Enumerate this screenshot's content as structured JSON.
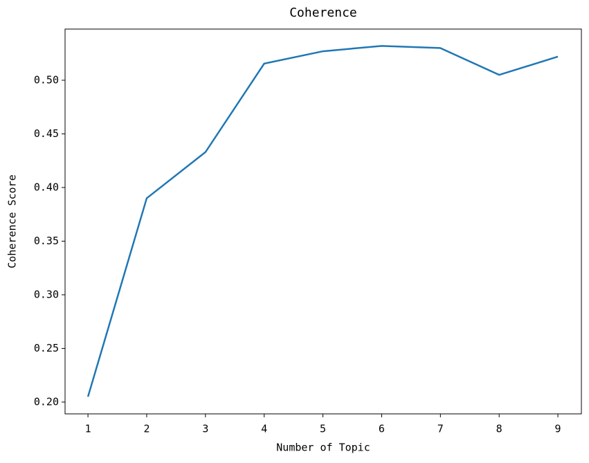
{
  "chart_data": {
    "type": "line",
    "title": "Coherence",
    "x_label": "Number of Topic",
    "y_label": "Coherence Score",
    "x": [
      1,
      2,
      3,
      4,
      5,
      6,
      7,
      8,
      9
    ],
    "series": [
      {
        "name": "Coherence Score",
        "color": "#1f77b4",
        "values": [
          0.205,
          0.39,
          0.433,
          0.5155,
          0.527,
          0.532,
          0.53,
          0.505,
          0.522
        ]
      }
    ],
    "xlim": [
      0.61,
      9.4
    ],
    "ylim": [
      0.189,
      0.5477
    ],
    "xticks": [
      1,
      2,
      3,
      4,
      5,
      6,
      7,
      8,
      9
    ],
    "yticks": [
      {
        "value": 0.2,
        "label": "0.20"
      },
      {
        "value": 0.25,
        "label": "0.25"
      },
      {
        "value": 0.3,
        "label": "0.30"
      },
      {
        "value": 0.35,
        "label": "0.35"
      },
      {
        "value": 0.4,
        "label": "0.40"
      },
      {
        "value": 0.45,
        "label": "0.45"
      },
      {
        "value": 0.5,
        "label": "0.50"
      }
    ]
  }
}
